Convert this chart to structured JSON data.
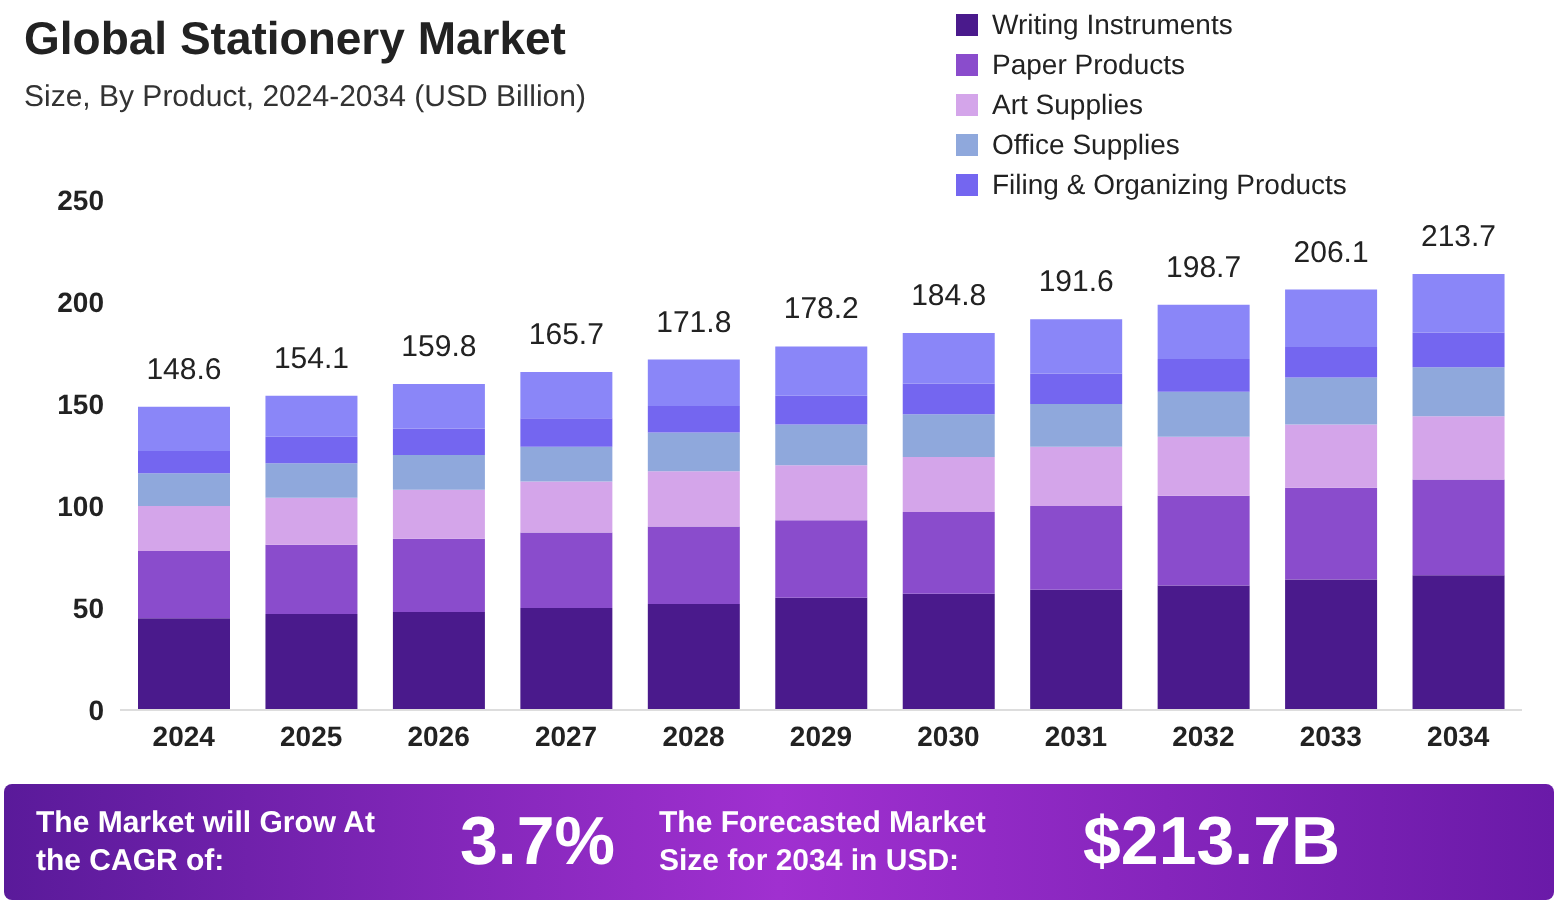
{
  "chart_data": {
    "type": "bar",
    "title": "Global Stationery Market",
    "subtitle": "Size, By Product, 2024-2034 (USD Billion)",
    "categories": [
      "2024",
      "2025",
      "2026",
      "2027",
      "2028",
      "2029",
      "2030",
      "2031",
      "2032",
      "2033",
      "2034"
    ],
    "stacked": true,
    "series": [
      {
        "name": "Writing Instruments",
        "color": "#4a1a8c",
        "values": [
          45,
          47,
          48,
          50,
          52,
          55,
          57,
          59,
          61,
          64,
          66
        ]
      },
      {
        "name": "Paper Products",
        "color": "#8a4ccc",
        "values": [
          33,
          34,
          36,
          37,
          38,
          38,
          40,
          41,
          44,
          45,
          47
        ]
      },
      {
        "name": "Art Supplies",
        "color": "#d4a5ea",
        "values": [
          22,
          23,
          24,
          25,
          27,
          27,
          27,
          29,
          29,
          31,
          31
        ]
      },
      {
        "name": "Office Supplies",
        "color": "#8fa8dc",
        "values": [
          16,
          17,
          17,
          17,
          19,
          20,
          21,
          21,
          22,
          23,
          24
        ]
      },
      {
        "name": "Filing & Organizing Products",
        "color": "#7466f0",
        "values": [
          11,
          13,
          13,
          14,
          13,
          14,
          15,
          15,
          16,
          15,
          17
        ]
      },
      {
        "color": "#8a86f8",
        "values": [
          21.6,
          20.1,
          21.8,
          22.7,
          22.8,
          24.2,
          24.8,
          26.6,
          26.7,
          28.1,
          28.7
        ]
      }
    ],
    "totals": [
      "148.6",
      "154.1",
      "159.8",
      "165.7",
      "171.8",
      "178.2",
      "184.8",
      "191.6",
      "198.7",
      "206.1",
      "213.7"
    ],
    "ylim": [
      0,
      250
    ],
    "yticks": [
      0,
      50,
      100,
      150,
      200,
      250
    ],
    "grid": false,
    "legend": "top right",
    "annotations": [
      "The Market will Grow At the CAGR of:",
      "3.7%",
      "The Forecasted Market Size for 2034 in USD:",
      "$213.7B"
    ]
  }
}
